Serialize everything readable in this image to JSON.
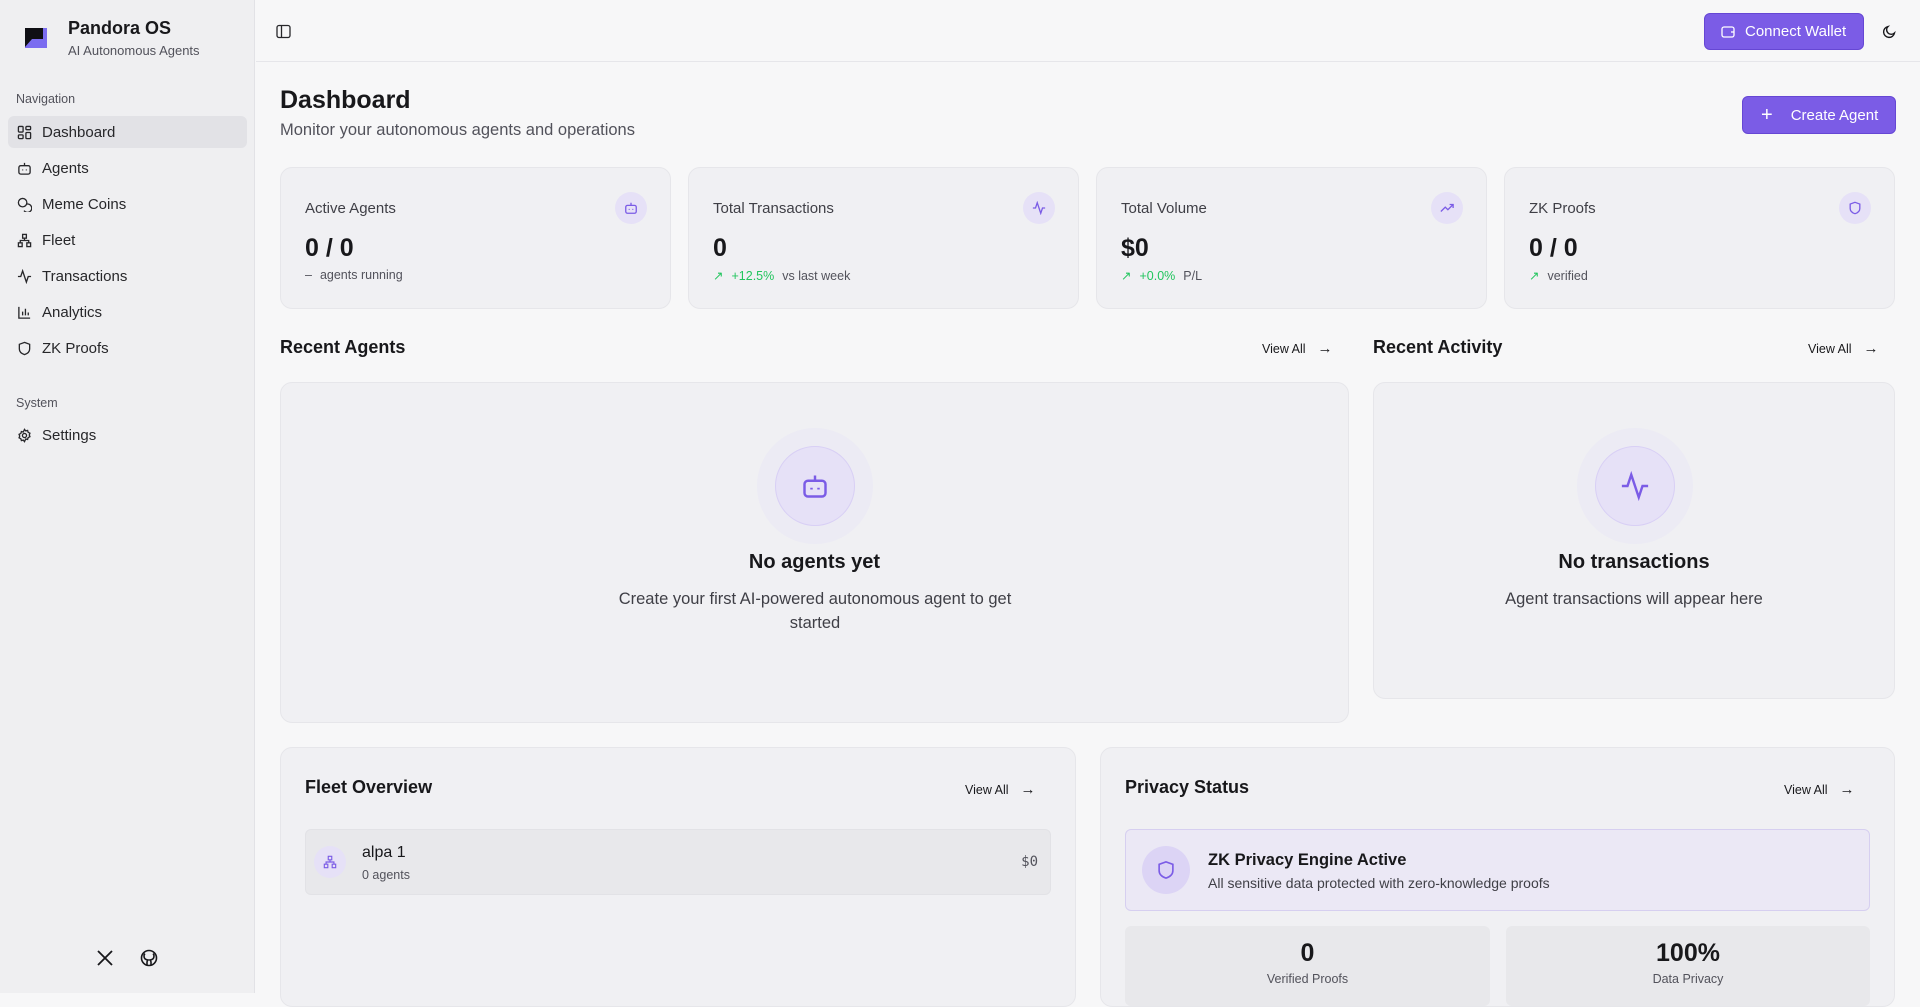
{
  "app": {
    "name": "Pandora OS",
    "tagline": "AI Autonomous Agents",
    "accent": "#7b5ce6"
  },
  "sidebar": {
    "nav_label": "Navigation",
    "items": [
      {
        "label": "Dashboard",
        "icon": "layout-dashboard-icon",
        "active": true
      },
      {
        "label": "Agents",
        "icon": "bot-icon"
      },
      {
        "label": "Meme Coins",
        "icon": "coins-icon"
      },
      {
        "label": "Fleet",
        "icon": "network-icon"
      },
      {
        "label": "Transactions",
        "icon": "activity-icon"
      },
      {
        "label": "Analytics",
        "icon": "bar-chart-icon"
      },
      {
        "label": "ZK Proofs",
        "icon": "shield-icon"
      }
    ],
    "system_label": "System",
    "system_items": [
      {
        "label": "Settings",
        "icon": "gear-icon"
      }
    ]
  },
  "header": {
    "connect_wallet": "Connect Wallet"
  },
  "page": {
    "title": "Dashboard",
    "subtitle": "Monitor your autonomous agents and operations",
    "create_agent": "Create Agent"
  },
  "stats": [
    {
      "label": "Active Agents",
      "value": "0 / 0",
      "change": "",
      "note": "agents running",
      "icon": "bot-icon"
    },
    {
      "label": "Total Transactions",
      "value": "0",
      "change": "+12.5%",
      "note": "vs last week",
      "icon": "activity-icon"
    },
    {
      "label": "Total Volume",
      "value": "$0",
      "change": "+0.0%",
      "note": "P/L",
      "icon": "trending-up-icon"
    },
    {
      "label": "ZK Proofs",
      "value": "0 / 0",
      "change": "",
      "note": "verified",
      "icon": "shield-icon"
    }
  ],
  "recent_agents": {
    "title": "Recent Agents",
    "view_all": "View All",
    "empty_title": "No agents yet",
    "empty_sub": "Create your first AI-powered autonomous agent to get started"
  },
  "recent_activity": {
    "title": "Recent Activity",
    "view_all": "View All",
    "empty_title": "No transactions",
    "empty_sub": "Agent transactions will appear here"
  },
  "fleet": {
    "title": "Fleet Overview",
    "view_all": "View All",
    "items": [
      {
        "name": "alpa 1",
        "agents": "0 agents",
        "value": "$0"
      }
    ]
  },
  "privacy": {
    "title": "Privacy Status",
    "view_all": "View All",
    "engine_title": "ZK Privacy Engine Active",
    "engine_sub": "All sensitive data protected with zero-knowledge proofs",
    "metrics": [
      {
        "value": "0",
        "label": "Verified Proofs"
      },
      {
        "value": "100%",
        "label": "Data Privacy"
      }
    ]
  }
}
